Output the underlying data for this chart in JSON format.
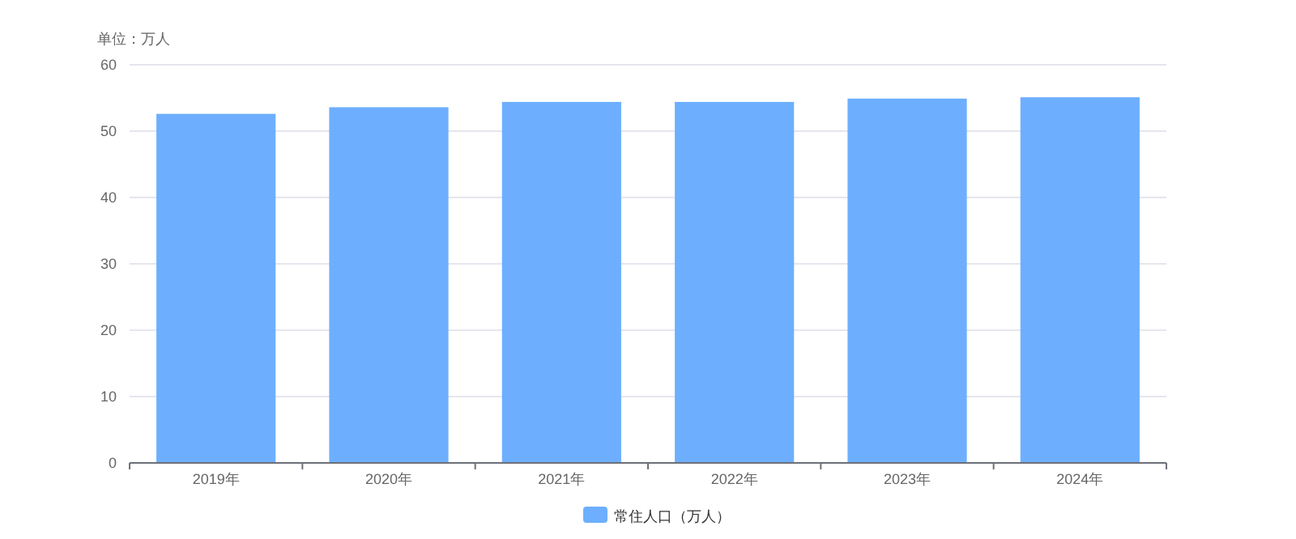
{
  "chart_data": {
    "type": "bar",
    "ylabel": "单位：万人",
    "categories": [
      "2019年",
      "2020年",
      "2021年",
      "2022年",
      "2023年",
      "2024年"
    ],
    "series": [
      {
        "name": "常住人口（万人）",
        "color": "#6daffe",
        "values": [
          52.6,
          53.6,
          54.4,
          54.4,
          54.9,
          55.1
        ]
      }
    ],
    "ylim": [
      0,
      60
    ],
    "yticks": [
      0,
      10,
      20,
      30,
      40,
      50,
      60
    ],
    "grid": "y",
    "legend": "bottom"
  }
}
